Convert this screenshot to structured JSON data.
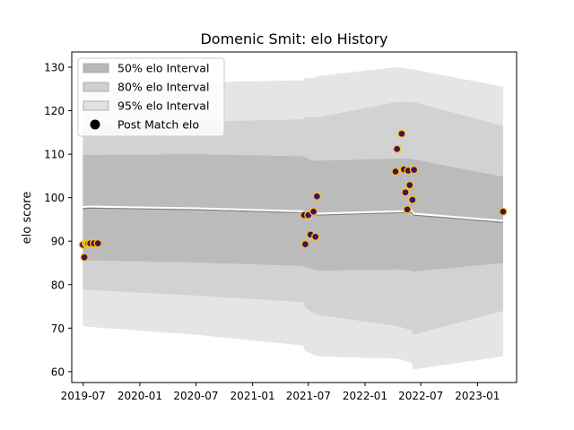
{
  "chart_data": {
    "type": "scatter",
    "title": "Domenic Smit: elo History",
    "xlabel": "",
    "ylabel": "elo score",
    "xlim": [
      "2019-05-25",
      "2023-05-08"
    ],
    "ylim": [
      57.5,
      133.5
    ],
    "x_ticks": [
      "2019-07",
      "2020-01",
      "2020-07",
      "2021-01",
      "2021-07",
      "2022-01",
      "2022-07",
      "2023-01"
    ],
    "y_ticks": [
      60,
      70,
      80,
      90,
      100,
      110,
      120,
      130
    ],
    "grid": false,
    "legend_position": "top-left",
    "colors": {
      "band95": "#e2e2e2",
      "band80": "#cfcfcf",
      "band50": "#b8b8b8",
      "mean_line": "#808080",
      "marker_face": "#44115f",
      "marker_edge": "#f5c518"
    },
    "legend": [
      {
        "label": "50% elo Interval",
        "kind": "band50"
      },
      {
        "label": "80% elo Interval",
        "kind": "band80"
      },
      {
        "label": "95% elo Interval",
        "kind": "band95"
      },
      {
        "label": "Post Match elo",
        "kind": "marker"
      }
    ],
    "rating_band": [
      {
        "date": "2019-06-30",
        "mean": 97.5,
        "p50": [
          85.8,
          109.8
        ],
        "p80": [
          79.0,
          116.5
        ],
        "p95": [
          70.5,
          125.0
        ]
      },
      {
        "date": "2019-07-20",
        "mean": 97.6,
        "p50": [
          85.6,
          109.8
        ],
        "p80": [
          78.8,
          116.4
        ],
        "p95": [
          70.3,
          124.8
        ]
      },
      {
        "date": "2020-07-01",
        "mean": 97.2,
        "p50": [
          85.1,
          110.0
        ],
        "p80": [
          77.5,
          117.5
        ],
        "p95": [
          68.5,
          126.5
        ]
      },
      {
        "date": "2021-06-15",
        "mean": 96.5,
        "p50": [
          84.3,
          109.5
        ],
        "p80": [
          76.0,
          118.0
        ],
        "p95": [
          66.0,
          127.0
        ]
      },
      {
        "date": "2021-06-20",
        "mean": 96.3,
        "p50": [
          84.2,
          109.3
        ],
        "p80": [
          74.8,
          118.5
        ],
        "p95": [
          64.8,
          127.5
        ]
      },
      {
        "date": "2021-07-15",
        "mean": 96.0,
        "p50": [
          83.5,
          108.5
        ],
        "p80": [
          73.5,
          118.5
        ],
        "p95": [
          64.0,
          127.5
        ]
      },
      {
        "date": "2021-08-05",
        "mean": 96.0,
        "p50": [
          83.2,
          108.5
        ],
        "p80": [
          73.0,
          118.5
        ],
        "p95": [
          63.5,
          128.0
        ]
      },
      {
        "date": "2022-04-15",
        "mean": 96.5,
        "p50": [
          83.5,
          109.0
        ],
        "p80": [
          70.5,
          122.0
        ],
        "p95": [
          63.0,
          130.0
        ]
      },
      {
        "date": "2022-06-01",
        "mean": 96.6,
        "p50": [
          83.2,
          109.0
        ],
        "p80": [
          69.5,
          122.0
        ],
        "p95": [
          62.0,
          129.5
        ]
      },
      {
        "date": "2022-06-06",
        "mean": 96.0,
        "p50": [
          83.0,
          108.8
        ],
        "p80": [
          68.5,
          122.0
        ],
        "p95": [
          60.5,
          129.5
        ]
      },
      {
        "date": "2023-03-25",
        "mean": 94.3,
        "p50": [
          85.0,
          104.8
        ],
        "p80": [
          74.0,
          116.5
        ],
        "p95": [
          63.5,
          125.5
        ]
      }
    ],
    "series": [
      {
        "name": "Post Match elo",
        "points": [
          {
            "x": "2019-06-30",
            "y": 89.2
          },
          {
            "x": "2019-07-05",
            "y": 86.3
          },
          {
            "x": "2019-07-10",
            "y": 89.5
          },
          {
            "x": "2019-07-14",
            "y": 89.5
          },
          {
            "x": "2019-07-18",
            "y": 89.5
          },
          {
            "x": "2019-07-24",
            "y": 89.5
          },
          {
            "x": "2019-08-05",
            "y": 89.5
          },
          {
            "x": "2019-08-18",
            "y": 89.5
          },
          {
            "x": "2021-06-17",
            "y": 96.0
          },
          {
            "x": "2021-06-21",
            "y": 89.3
          },
          {
            "x": "2021-07-01",
            "y": 96.0
          },
          {
            "x": "2021-07-08",
            "y": 91.5
          },
          {
            "x": "2021-07-18",
            "y": 96.8
          },
          {
            "x": "2021-07-24",
            "y": 91.0
          },
          {
            "x": "2021-07-29",
            "y": 100.3
          },
          {
            "x": "2022-04-10",
            "y": 106.0
          },
          {
            "x": "2022-04-15",
            "y": 111.2
          },
          {
            "x": "2022-04-30",
            "y": 114.7
          },
          {
            "x": "2022-05-07",
            "y": 106.5
          },
          {
            "x": "2022-05-12",
            "y": 101.2
          },
          {
            "x": "2022-05-18",
            "y": 97.3
          },
          {
            "x": "2022-05-21",
            "y": 106.2
          },
          {
            "x": "2022-05-26",
            "y": 102.9
          },
          {
            "x": "2022-06-04",
            "y": 99.5
          },
          {
            "x": "2022-06-09",
            "y": 106.4
          },
          {
            "x": "2023-03-25",
            "y": 96.8
          }
        ]
      }
    ]
  }
}
